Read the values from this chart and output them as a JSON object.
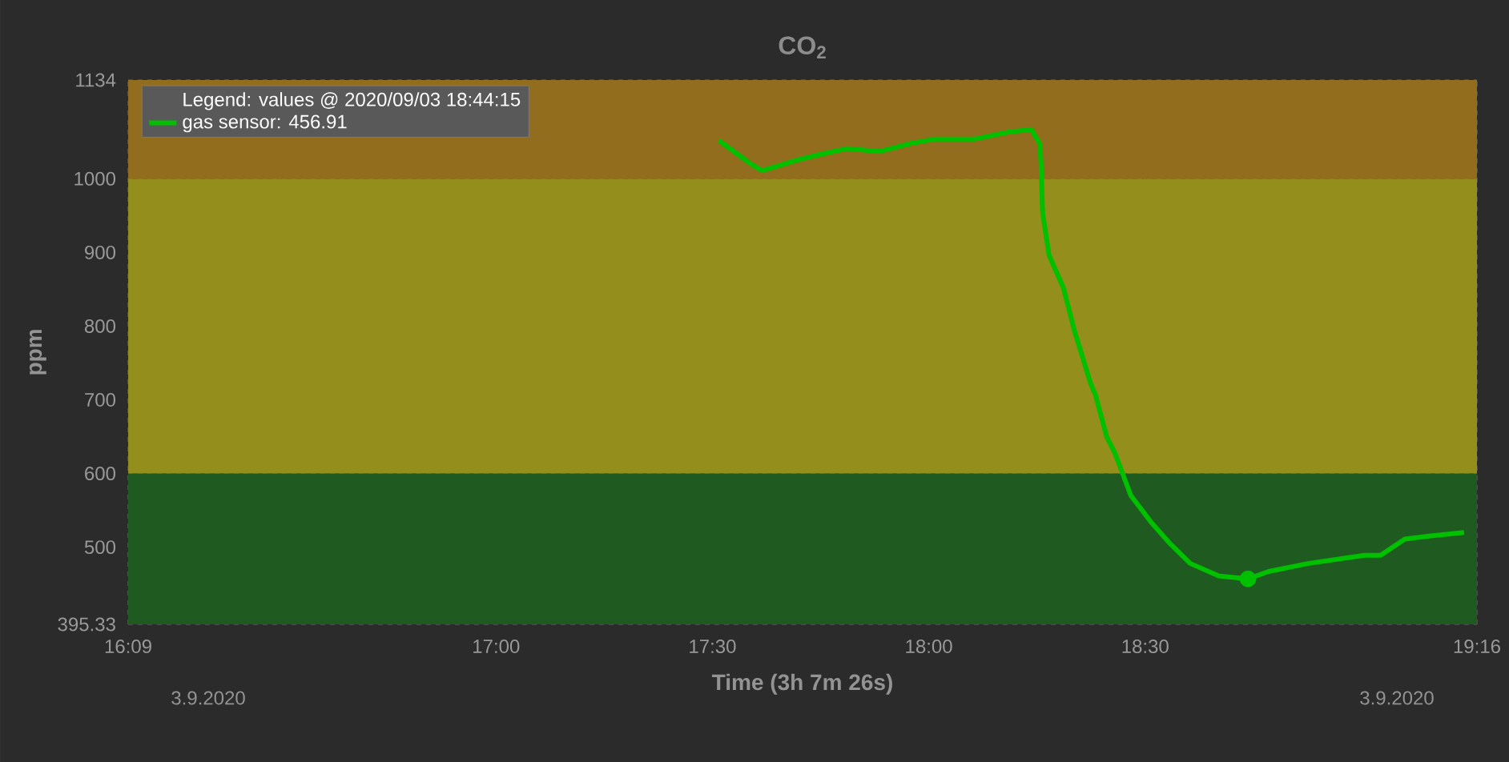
{
  "chart_data": {
    "type": "line",
    "title": "CO$_{2}$",
    "xlabel": "Time (3h 7m 26s)",
    "ylabel": "ppm",
    "legend_title": "Legend: values @ 2020/09/03 18:44:15",
    "xlim": [
      16.15,
      19.2667
    ],
    "ylim": [
      395.33,
      1134
    ],
    "xticks": [
      {
        "value": 16.15,
        "label": "16:09"
      },
      {
        "value": 16.5,
        "label": null
      },
      {
        "value": 17,
        "label": "17:00"
      },
      {
        "value": 17.5,
        "label": "17:30"
      },
      {
        "value": 18,
        "label": "18:00"
      },
      {
        "value": 18.5,
        "label": "18:30"
      },
      {
        "value": 19,
        "label": null
      },
      {
        "value": 19.2667,
        "label": "19:16"
      }
    ],
    "yticks": [
      395.33,
      500,
      600,
      700,
      800,
      900,
      1000,
      1134
    ],
    "grid": true,
    "legend": "top left",
    "bands": [
      {
        "axis": "y",
        "from": 395.33,
        "to": 600,
        "color": "#1f5a20"
      },
      {
        "axis": "y",
        "from": 600,
        "to": 1000,
        "color": "#948f1d"
      },
      {
        "axis": "y",
        "from": 1000,
        "to": 1134,
        "color": "#936d1e"
      }
    ],
    "annotations": [
      "3.9.2020",
      "3.9.2020"
    ],
    "series": [
      {
        "name": "gas sensor: 456.91",
        "color": "#00c000",
        "line_style": "solid",
        "x": [
          17.515,
          17.589,
          17.615,
          17.7,
          17.748,
          17.811,
          17.885,
          17.959,
          18.015,
          18.107,
          18.181,
          18.237,
          18.256,
          18.259,
          18.263,
          18.278,
          18.311,
          18.337,
          18.374,
          18.385,
          18.411,
          18.43,
          18.467,
          18.515,
          18.559,
          18.604,
          18.67,
          18.7375,
          18.785,
          18.878,
          19.007,
          19.044,
          19.1,
          19.156,
          19.237
        ],
        "values": [
          1052,
          1020,
          1011,
          1026,
          1033,
          1041,
          1037,
          1048,
          1054,
          1054,
          1063,
          1067,
          1048,
          1026,
          954,
          896,
          852,
          793,
          722,
          707,
          650,
          628,
          570,
          533,
          504,
          478,
          461,
          457,
          467,
          478,
          489,
          489,
          511,
          515,
          520
        ]
      },
      {
        "type": "scatter",
        "marker": "circle",
        "color": "#00c000",
        "x": [
          18.7375
        ],
        "values": [
          457
        ]
      }
    ]
  }
}
